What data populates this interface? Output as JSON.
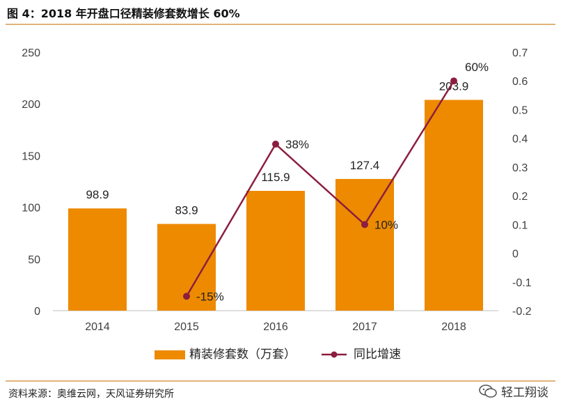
{
  "header": {
    "title": "图 4：2018 年开盘口径精装修套数增长 60%"
  },
  "footer": {
    "source": "资料来源：奥维云网，天风证券研究所",
    "brand": "轻工翔谈"
  },
  "colors": {
    "bar": "#ED8A00",
    "line": "#8B1E3F",
    "axis_text": "#404040"
  },
  "chart_data": {
    "type": "bar+line",
    "categories": [
      "2014",
      "2015",
      "2016",
      "2017",
      "2018"
    ],
    "series": [
      {
        "name": "精装修套数（万套）",
        "type": "bar",
        "axis": "left",
        "values": [
          98.9,
          83.9,
          115.9,
          127.4,
          203.9
        ],
        "labels": [
          "98.9",
          "83.9",
          "115.9",
          "127.4",
          "203.9"
        ]
      },
      {
        "name": "同比增速",
        "type": "line",
        "axis": "right",
        "values": [
          null,
          -0.15,
          0.38,
          0.1,
          0.6
        ],
        "labels": [
          "",
          "-15%",
          "38%",
          "10%",
          "60%"
        ]
      }
    ],
    "y_left": {
      "min": 0,
      "max": 250,
      "ticks": [
        "0",
        "50",
        "100",
        "150",
        "200",
        "250"
      ]
    },
    "y_right": {
      "min": -0.2,
      "max": 0.7,
      "ticks": [
        "-0.2",
        "-0.1",
        "0",
        "0.1",
        "0.2",
        "0.3",
        "0.4",
        "0.5",
        "0.6",
        "0.7"
      ]
    },
    "legend_position": "bottom"
  }
}
